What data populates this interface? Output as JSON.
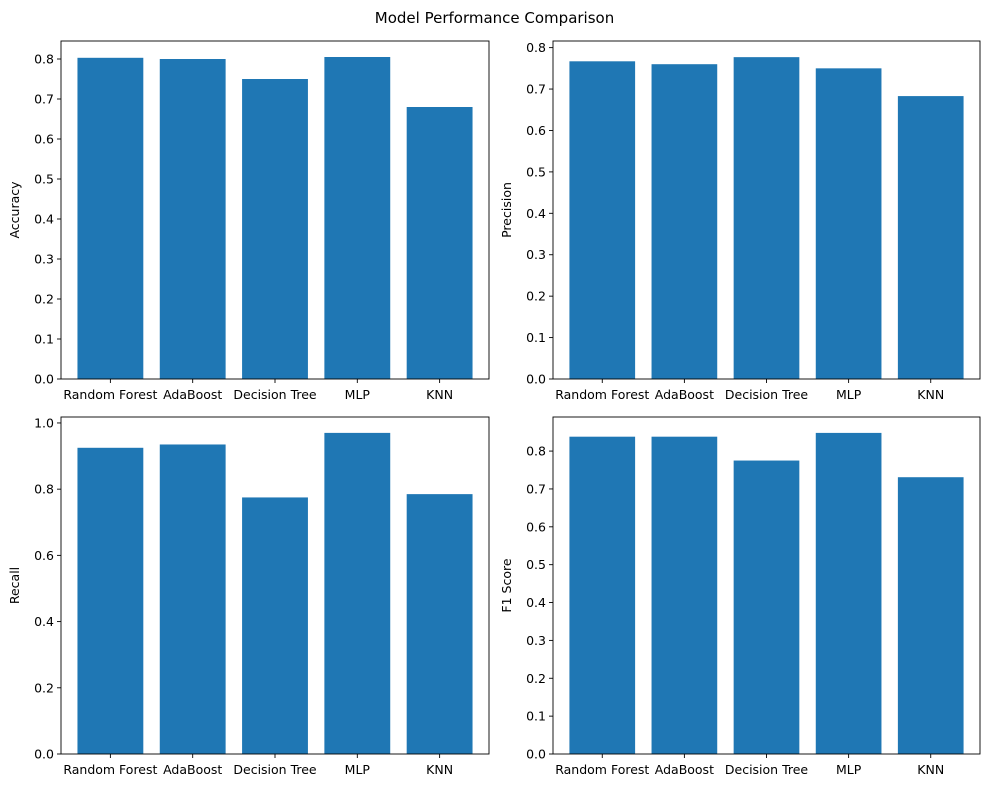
{
  "figure": {
    "title": "Model Performance Comparison"
  },
  "colors": {
    "bar": "#1f77b4",
    "axis": "#000000",
    "background": "#ffffff"
  },
  "chart_data": [
    {
      "type": "bar",
      "title": "",
      "xlabel": "",
      "ylabel": "Accuracy",
      "categories": [
        "Random Forest",
        "AdaBoost",
        "Decision Tree",
        "MLP",
        "KNN"
      ],
      "values": [
        0.803,
        0.8,
        0.75,
        0.805,
        0.68
      ],
      "ylim": [
        0,
        0.845
      ],
      "yticks": [
        0.0,
        0.1,
        0.2,
        0.3,
        0.4,
        0.5,
        0.6,
        0.7,
        0.8
      ],
      "ytick_labels": [
        "0.0",
        "0.1",
        "0.2",
        "0.3",
        "0.4",
        "0.5",
        "0.6",
        "0.7",
        "0.8"
      ],
      "grid": false
    },
    {
      "type": "bar",
      "title": "",
      "xlabel": "",
      "ylabel": "Precision",
      "categories": [
        "Random Forest",
        "AdaBoost",
        "Decision Tree",
        "MLP",
        "KNN"
      ],
      "values": [
        0.767,
        0.76,
        0.777,
        0.75,
        0.683
      ],
      "ylim": [
        0,
        0.816
      ],
      "yticks": [
        0.0,
        0.1,
        0.2,
        0.3,
        0.4,
        0.5,
        0.6,
        0.7,
        0.8
      ],
      "ytick_labels": [
        "0.0",
        "0.1",
        "0.2",
        "0.3",
        "0.4",
        "0.5",
        "0.6",
        "0.7",
        "0.8"
      ],
      "grid": false
    },
    {
      "type": "bar",
      "title": "",
      "xlabel": "",
      "ylabel": "Recall",
      "categories": [
        "Random Forest",
        "AdaBoost",
        "Decision Tree",
        "MLP",
        "KNN"
      ],
      "values": [
        0.925,
        0.935,
        0.775,
        0.97,
        0.785
      ],
      "ylim": [
        0,
        1.018
      ],
      "yticks": [
        0.0,
        0.2,
        0.4,
        0.6,
        0.8,
        1.0
      ],
      "ytick_labels": [
        "0.0",
        "0.2",
        "0.4",
        "0.6",
        "0.8",
        "1.0"
      ],
      "grid": false
    },
    {
      "type": "bar",
      "title": "",
      "xlabel": "",
      "ylabel": "F1 Score",
      "categories": [
        "Random Forest",
        "AdaBoost",
        "Decision Tree",
        "MLP",
        "KNN"
      ],
      "values": [
        0.838,
        0.838,
        0.775,
        0.848,
        0.731
      ],
      "ylim": [
        0,
        0.89
      ],
      "yticks": [
        0.0,
        0.1,
        0.2,
        0.3,
        0.4,
        0.5,
        0.6,
        0.7,
        0.8
      ],
      "ytick_labels": [
        "0.0",
        "0.1",
        "0.2",
        "0.3",
        "0.4",
        "0.5",
        "0.6",
        "0.7",
        "0.8"
      ],
      "grid": false
    }
  ]
}
